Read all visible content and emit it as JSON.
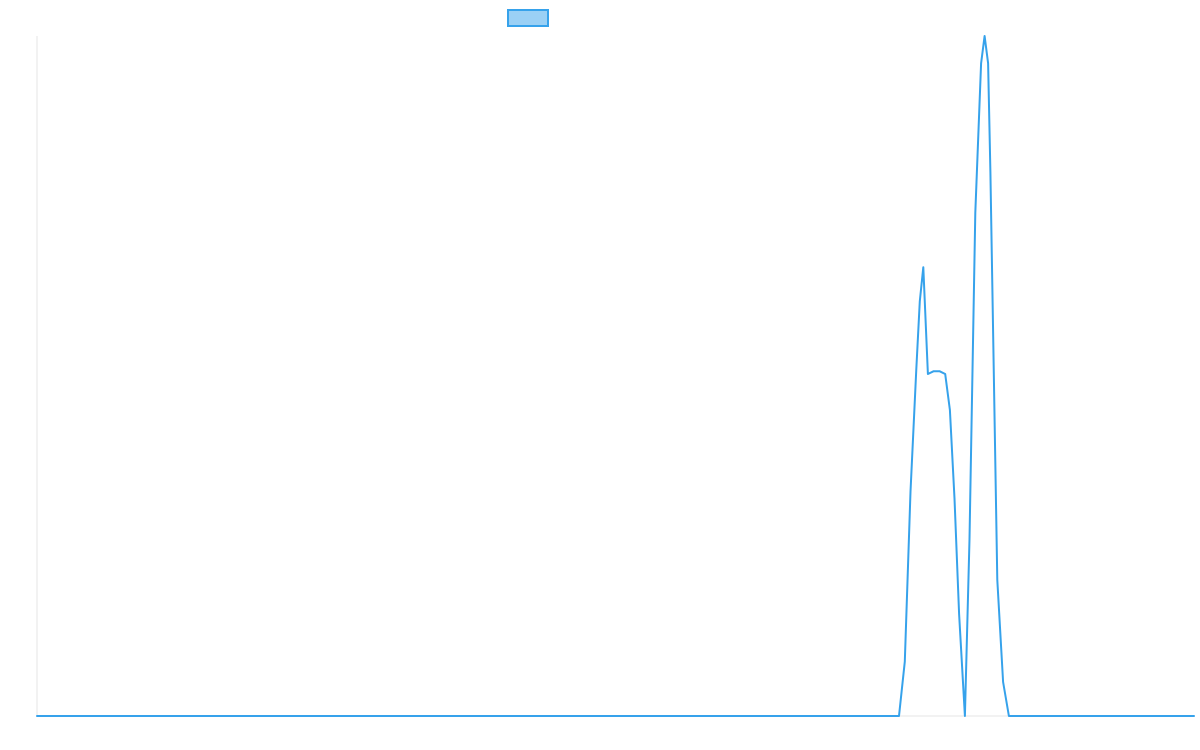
{
  "chart_data": {
    "type": "line",
    "title": "",
    "xlabel": "",
    "ylabel": "",
    "grid": false,
    "legend": {
      "position": "top-center",
      "entries": [
        {
          "label": "",
          "fill_color": "#9ad0f5",
          "stroke_color": "#36a2eb"
        }
      ]
    },
    "xlim": [
      0,
      100
    ],
    "ylim": [
      0,
      100
    ],
    "series": [
      {
        "color": "#36a2eb",
        "x": [
          0,
          74.5,
          75.0,
          75.5,
          76.0,
          76.3,
          76.6,
          77.0,
          77.5,
          78.0,
          78.5,
          78.9,
          79.3,
          79.7,
          80.2,
          80.6,
          81.1,
          81.6,
          81.9,
          82.2,
          82.4,
          82.6,
          82.8,
          83.0,
          83.5,
          84.0,
          84.4,
          84.8,
          85.0,
          85.3,
          85.9,
          86.4,
          86.7,
          87.0,
          87.6,
          88.0,
          100
        ],
        "y": [
          0,
          0,
          8,
          33,
          51,
          61,
          66,
          50.3,
          50.7,
          50.7,
          50.3,
          45,
          32,
          15,
          0,
          26,
          74,
          96,
          100,
          96,
          80,
          60,
          40,
          20,
          5,
          0,
          0,
          0,
          0,
          0,
          0,
          0,
          0,
          0,
          0,
          0,
          0
        ]
      }
    ]
  }
}
